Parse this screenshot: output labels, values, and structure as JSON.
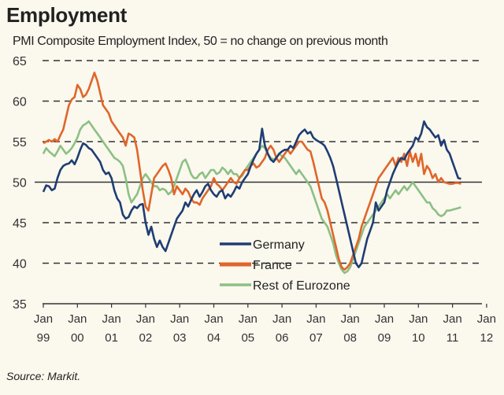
{
  "title": "Employment",
  "subtitle": "PMI Composite Employment Index, 50 = no change on previous month",
  "source": "Source: Markit.",
  "chart_data": {
    "type": "line",
    "title": "Employment",
    "subtitle": "PMI Composite Employment Index, 50 = no change on previous month",
    "xlabel": "",
    "ylabel": "",
    "ylim": [
      35,
      65
    ],
    "yticks": [
      65,
      60,
      55,
      50,
      45,
      40,
      35
    ],
    "reference_line": 50,
    "grid": "dashed horizontal at 65, 60, 55, 45, 40; solid at 50",
    "legend_position": "bottom-center",
    "x_start": "1999-01",
    "x_end": "2012-02",
    "x_frequency": "monthly",
    "xtick_labels": [
      {
        "line1": "Jan",
        "line2": "99"
      },
      {
        "line1": "Jan",
        "line2": "00"
      },
      {
        "line1": "Jan",
        "line2": "01"
      },
      {
        "line1": "Jan",
        "line2": "02"
      },
      {
        "line1": "Jan",
        "line2": "03"
      },
      {
        "line1": "Jan",
        "line2": "04"
      },
      {
        "line1": "Jan",
        "line2": "05"
      },
      {
        "line1": "Jan",
        "line2": "06"
      },
      {
        "line1": "Jan",
        "line2": "07"
      },
      {
        "line1": "Jan",
        "line2": "08"
      },
      {
        "line1": "Jan",
        "line2": "09"
      },
      {
        "line1": "Jan",
        "line2": "10"
      },
      {
        "line1": "Jan",
        "line2": "11"
      },
      {
        "line1": "Jan",
        "line2": "12"
      }
    ],
    "series": [
      {
        "name": "Germany",
        "color": "#1f3d73",
        "values": [
          48.8,
          49.6,
          49.5,
          49.0,
          49.2,
          50.5,
          51.5,
          52.0,
          52.2,
          52.3,
          52.7,
          52.2,
          53.0,
          54.0,
          54.8,
          54.6,
          54.2,
          54.0,
          53.5,
          53.0,
          52.5,
          51.5,
          51.0,
          51.2,
          50.5,
          49.0,
          48.0,
          47.5,
          46.0,
          45.5,
          45.7,
          46.5,
          47.0,
          46.8,
          47.2,
          47.3,
          45.0,
          43.5,
          44.5,
          43.0,
          42.0,
          42.8,
          42.0,
          41.5,
          42.5,
          43.5,
          44.5,
          45.5,
          46.0,
          46.5,
          47.5,
          47.0,
          47.8,
          48.5,
          49.0,
          48.2,
          48.8,
          49.5,
          49.8,
          49.0,
          48.5,
          48.2,
          48.8,
          49.0,
          48.0,
          48.5,
          48.2,
          48.8,
          49.5,
          49.2,
          50.0,
          50.5,
          51.0,
          52.0,
          52.8,
          53.5,
          54.0,
          56.6,
          54.5,
          53.5,
          52.8,
          52.5,
          53.0,
          53.5,
          53.8,
          54.0,
          54.0,
          54.5,
          54.2,
          55.0,
          55.8,
          56.2,
          56.5,
          56.0,
          56.2,
          55.5,
          55.2,
          55.0,
          54.8,
          54.5,
          53.8,
          53.0,
          52.0,
          50.5,
          49.0,
          47.5,
          46.0,
          44.5,
          43.0,
          41.5,
          40.0,
          39.5,
          40.0,
          41.5,
          43.0,
          44.0,
          45.0,
          47.5,
          46.5,
          47.0,
          47.5,
          49.0,
          50.0,
          51.0,
          51.8,
          52.5,
          53.0,
          52.8,
          53.5,
          54.0,
          54.5,
          55.5,
          55.2,
          56.0,
          57.5,
          56.8,
          56.5,
          56.0,
          55.5,
          55.8,
          54.5,
          55.2,
          54.0,
          53.5,
          52.5,
          51.5,
          50.5,
          50.4
        ]
      },
      {
        "name": "France",
        "color": "#e0662a",
        "values": [
          54.8,
          55.0,
          55.2,
          55.0,
          55.3,
          55.0,
          55.8,
          56.5,
          58.0,
          59.5,
          60.2,
          60.5,
          62.0,
          61.5,
          60.5,
          60.8,
          61.5,
          62.5,
          63.5,
          62.5,
          61.0,
          59.5,
          59.0,
          58.5,
          57.5,
          57.0,
          56.5,
          56.0,
          55.5,
          54.5,
          56.0,
          55.8,
          55.5,
          54.0,
          51.5,
          49.0,
          47.0,
          46.5,
          48.5,
          50.5,
          51.0,
          51.5,
          52.0,
          52.3,
          51.5,
          50.5,
          48.5,
          49.5,
          49.0,
          48.5,
          49.2,
          48.8,
          48.0,
          47.5,
          47.5,
          47.2,
          48.0,
          48.5,
          49.0,
          49.5,
          50.5,
          49.8,
          49.5,
          49.0,
          49.5,
          50.0,
          50.5,
          50.0,
          49.8,
          50.5,
          51.0,
          51.5,
          51.5,
          52.0,
          52.3,
          51.8,
          52.0,
          52.5,
          53.0,
          54.0,
          54.5,
          54.0,
          53.0,
          52.5,
          53.0,
          53.5,
          54.0,
          53.5,
          54.0,
          54.5,
          55.0,
          55.0,
          54.5,
          54.0,
          53.8,
          52.5,
          51.0,
          49.5,
          48.0,
          47.5,
          46.5,
          45.0,
          43.5,
          42.0,
          40.5,
          39.5,
          39.2,
          39.5,
          40.0,
          41.0,
          42.0,
          43.0,
          44.5,
          45.5,
          46.5,
          47.5,
          48.5,
          49.5,
          50.5,
          51.0,
          51.5,
          52.0,
          52.5,
          53.0,
          52.0,
          53.0,
          52.5,
          53.5,
          52.0,
          53.8,
          52.5,
          53.5,
          52.0,
          53.5,
          51.0,
          52.0,
          51.5,
          50.5,
          51.0,
          50.0,
          50.5,
          50.0,
          49.9,
          49.8,
          49.8,
          49.9,
          49.9,
          49.8
        ]
      },
      {
        "name": "Rest of Eurozone",
        "color": "#8cc084",
        "values": [
          53.5,
          54.2,
          53.8,
          53.5,
          53.2,
          53.8,
          54.5,
          54.0,
          53.5,
          53.8,
          54.2,
          54.8,
          55.5,
          56.5,
          57.0,
          57.2,
          57.5,
          57.0,
          56.5,
          56.0,
          55.5,
          55.0,
          54.5,
          54.0,
          53.5,
          53.0,
          52.8,
          52.5,
          52.0,
          50.5,
          48.5,
          47.5,
          48.0,
          48.5,
          49.5,
          50.5,
          51.0,
          50.5,
          50.0,
          49.5,
          49.5,
          49.0,
          49.2,
          49.0,
          48.5,
          48.8,
          49.5,
          50.5,
          51.5,
          52.5,
          52.8,
          52.0,
          51.0,
          50.5,
          50.5,
          51.0,
          51.2,
          50.5,
          51.0,
          51.5,
          51.5,
          51.0,
          51.2,
          51.8,
          51.5,
          51.0,
          51.5,
          51.0,
          51.0,
          50.5,
          50.8,
          51.5,
          52.0,
          52.5,
          53.0,
          53.5,
          54.0,
          54.5,
          54.2,
          53.5,
          53.0,
          52.8,
          53.0,
          53.5,
          53.2,
          53.0,
          52.5,
          52.0,
          51.5,
          51.0,
          51.5,
          51.0,
          50.5,
          50.0,
          49.5,
          48.5,
          47.5,
          46.5,
          45.5,
          45.0,
          44.5,
          43.5,
          42.5,
          41.0,
          40.0,
          39.2,
          38.8,
          39.0,
          39.5,
          40.5,
          41.5,
          42.5,
          43.5,
          44.5,
          45.0,
          45.5,
          46.0,
          46.5,
          47.0,
          47.5,
          48.0,
          48.5,
          48.0,
          48.5,
          49.0,
          48.5,
          49.0,
          49.5,
          49.0,
          49.5,
          50.0,
          49.5,
          49.0,
          48.5,
          48.0,
          47.5,
          47.5,
          46.8,
          46.5,
          46.0,
          45.8,
          46.0,
          46.5,
          46.5,
          46.6,
          46.7,
          46.8,
          46.9
        ]
      }
    ]
  }
}
